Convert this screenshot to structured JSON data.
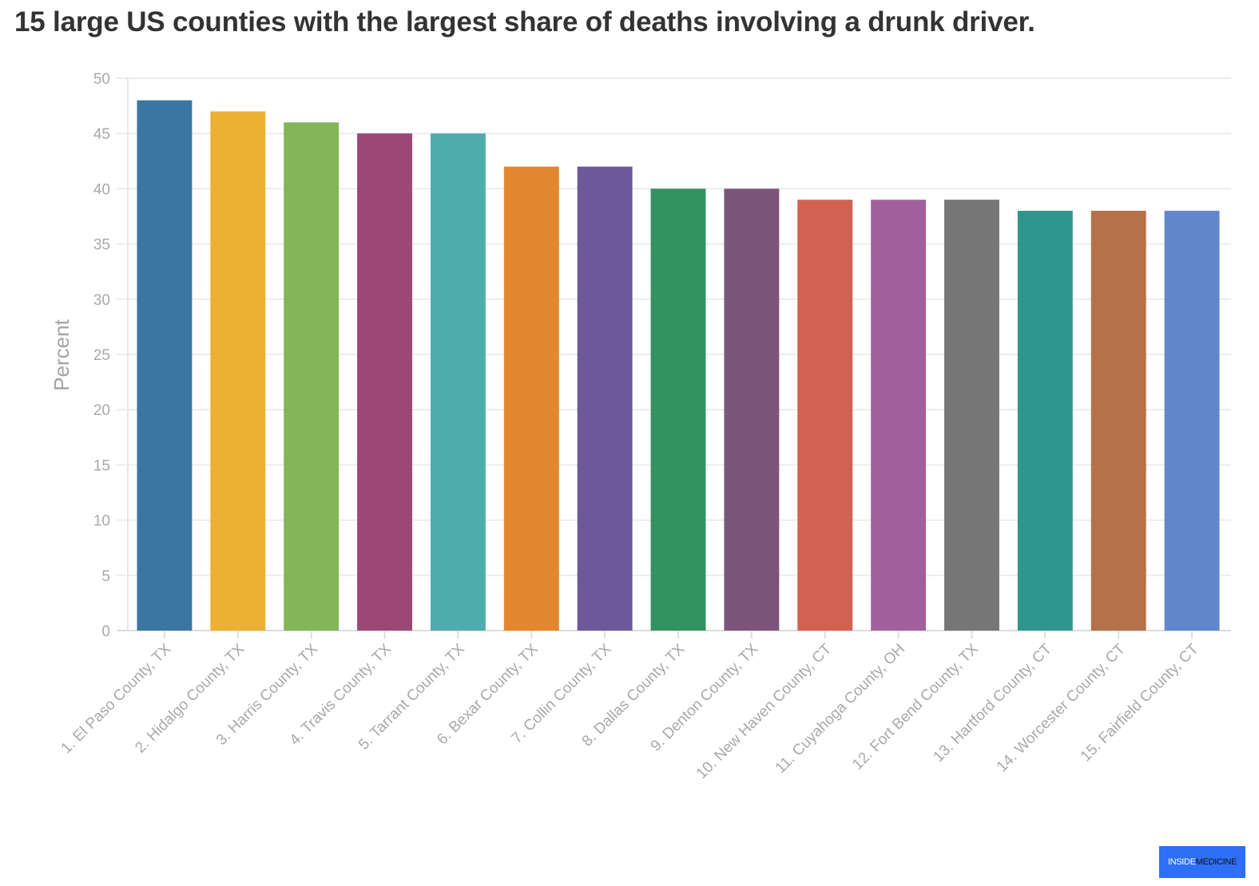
{
  "chart_data": {
    "type": "bar",
    "title": "15 large US counties with the largest share of deaths involving a drunk driver.",
    "ylabel": "Percent",
    "xlabel": "",
    "ylim": [
      0,
      50
    ],
    "yticks": [
      0,
      5,
      10,
      15,
      20,
      25,
      30,
      35,
      40,
      45,
      50
    ],
    "grid": true,
    "legend": "none",
    "categories": [
      "1. El Paso County, TX",
      "2. Hidalgo County, TX",
      "3. Harris County, TX",
      "4. Travis County, TX",
      "5. Tarrant County, TX",
      "6. Bexar County, TX",
      "7. Collin County, TX",
      "8. Dallas County, TX",
      "9. Denton County, TX",
      "10. New Haven County, CT",
      "11. Cuyahoga County, OH",
      "12. Fort Bend County, TX",
      "13. Hartford County, CT",
      "14. Worcester County, CT",
      "15. Fairfield County, CT"
    ],
    "values": [
      48,
      47,
      46,
      45,
      45,
      42,
      42,
      40,
      40,
      39,
      39,
      39,
      38,
      38,
      38
    ],
    "colors": [
      "#3a76a0",
      "#ecb133",
      "#83b559",
      "#9c4877",
      "#50adae",
      "#e2872e",
      "#6e589c",
      "#349162",
      "#7b557b",
      "#d16251",
      "#a1609c",
      "#767676",
      "#2e968f",
      "#b4714a",
      "#6087cb"
    ]
  },
  "brand": {
    "part1": "INSIDE",
    "part2": "MEDICINE",
    "color": "#2f6ff5"
  }
}
